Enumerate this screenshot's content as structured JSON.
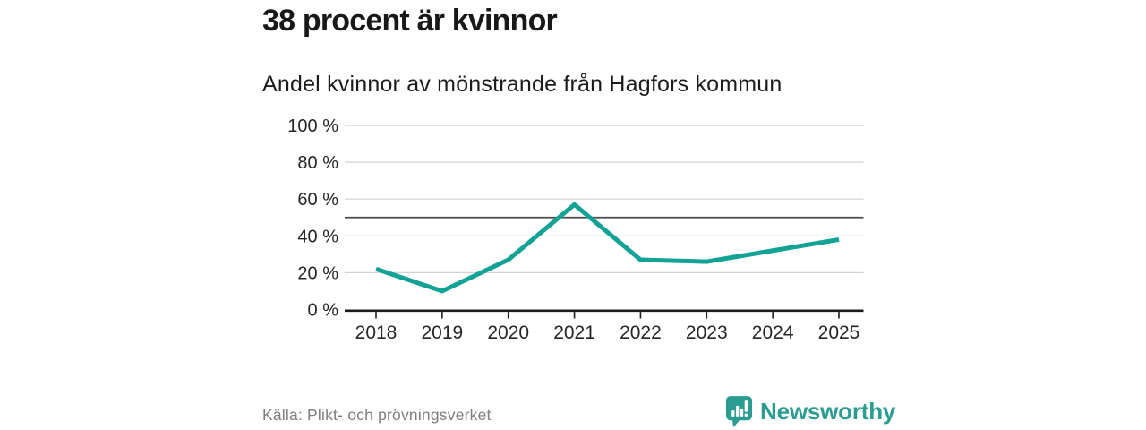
{
  "header": {
    "title": "38 procent är kvinnor",
    "subtitle": "Andel kvinnor av mönstrande från Hagfors kommun"
  },
  "chart_data": {
    "type": "line",
    "title": "Andel kvinnor av mönstrande från Hagfors kommun",
    "categories": [
      "2018",
      "2019",
      "2020",
      "2021",
      "2022",
      "2023",
      "2024",
      "2025"
    ],
    "values": [
      22,
      10,
      27,
      57,
      27,
      26,
      32,
      38
    ],
    "unit": "%",
    "xlabel": "",
    "ylabel": "",
    "ylim": [
      0,
      100
    ],
    "yticks": [
      0,
      20,
      40,
      60,
      80,
      100
    ],
    "ytick_labels": [
      "0 %",
      "20 %",
      "40 %",
      "60 %",
      "80 %",
      "100 %"
    ],
    "reference_line": 50,
    "grid": "horizontal",
    "legend": "none"
  },
  "footer": {
    "source": "Källa: Plikt- och prövningsverket",
    "brand": "Newsworthy",
    "brand_icon": "newsworthy-bar-chart-bubble-icon"
  },
  "colors": {
    "accent_line": "#13a296",
    "brand": "#2a9c91",
    "grid": "#d2d2d2",
    "reference_line": "#4d4d4d",
    "axis": "#1c1c1c",
    "tick_text": "#262626",
    "muted_text": "#7e7e7e"
  }
}
